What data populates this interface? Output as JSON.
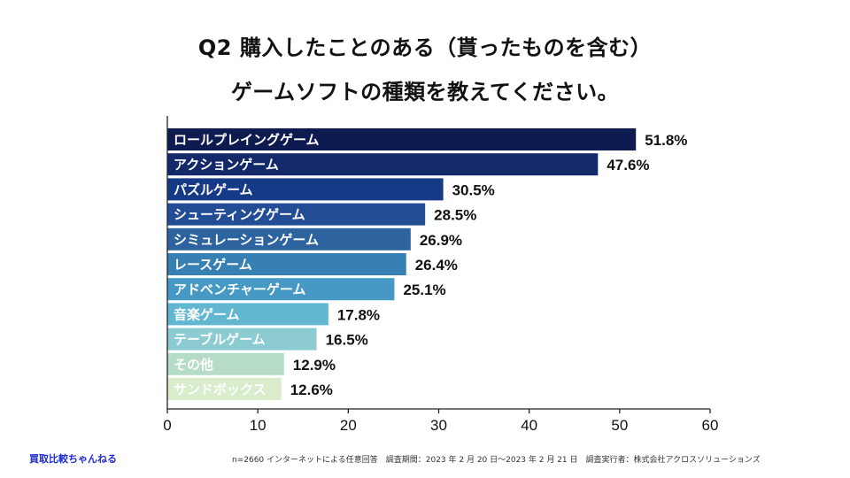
{
  "title_line1": "Q2  購入したことのある（貰ったものを含む）",
  "title_line2": "ゲームソフトの種類を教えてください。",
  "footer_brand": "買取比較ちゃんねる",
  "footer_note": "n=2660 インターネットによる任意回答　調査期間：2023 年 2 月 20 日〜2023 年 2 月 21 日　調査実行者：株式会社アクロスソリューションズ",
  "chart_data": {
    "type": "bar",
    "orientation": "horizontal",
    "title": "Q2  購入したことのある（貰ったものを含む） ゲームソフトの種類を教えてください。",
    "categories": [
      "ロールプレイングゲーム",
      "アクションゲーム",
      "パズルゲーム",
      "シューティングゲーム",
      "シミュレーションゲーム",
      "レースゲーム",
      "アドベンチャーゲーム",
      "音楽ゲーム",
      "テーブルゲーム",
      "その他",
      "サンドボックス"
    ],
    "values": [
      51.8,
      47.6,
      30.5,
      28.5,
      26.9,
      26.4,
      25.1,
      17.8,
      16.5,
      12.9,
      12.6
    ],
    "value_labels": [
      "51.8%",
      "47.6%",
      "30.5%",
      "28.5%",
      "26.9%",
      "26.4%",
      "25.1%",
      "17.8%",
      "16.5%",
      "12.9%",
      "12.6%"
    ],
    "colors": [
      "#0d1b50",
      "#13296a",
      "#163a86",
      "#224c94",
      "#2d64a0",
      "#3680b3",
      "#4699c4",
      "#63b6d0",
      "#8ccbd1",
      "#b6dcc8",
      "#d9eccc"
    ],
    "xlim": [
      0,
      60
    ],
    "xticks": [
      0,
      10,
      20,
      30,
      40,
      50,
      60
    ],
    "xtick_labels": [
      "0",
      "10",
      "20",
      "30",
      "40",
      "50",
      "60"
    ],
    "grid": false,
    "xlabel": "",
    "ylabel": ""
  }
}
